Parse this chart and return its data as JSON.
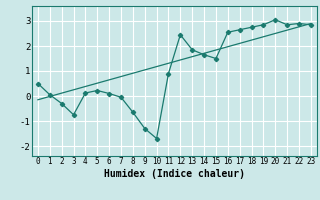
{
  "xlabel": "Humidex (Indice chaleur)",
  "background_color": "#cce8e8",
  "grid_color": "#ffffff",
  "line_color": "#1a7a6e",
  "xlim": [
    -0.5,
    23.5
  ],
  "ylim": [
    -2.4,
    3.6
  ],
  "xticks": [
    0,
    1,
    2,
    3,
    4,
    5,
    6,
    7,
    8,
    9,
    10,
    11,
    12,
    13,
    14,
    15,
    16,
    17,
    18,
    19,
    20,
    21,
    22,
    23
  ],
  "yticks": [
    -2,
    -1,
    0,
    1,
    2,
    3
  ],
  "scatter_x": [
    0,
    1,
    2,
    3,
    4,
    5,
    6,
    7,
    8,
    9,
    10,
    11,
    12,
    13,
    14,
    15,
    16,
    17,
    18,
    19,
    20,
    21,
    22,
    23
  ],
  "scatter_y": [
    0.5,
    0.05,
    -0.3,
    -0.75,
    0.12,
    0.22,
    0.1,
    -0.05,
    -0.65,
    -1.3,
    -1.7,
    0.9,
    2.45,
    1.85,
    1.65,
    1.5,
    2.55,
    2.65,
    2.75,
    2.85,
    3.05,
    2.85,
    2.9,
    2.85
  ],
  "trend_x": [
    0,
    23
  ],
  "trend_y": [
    -0.15,
    2.9
  ]
}
